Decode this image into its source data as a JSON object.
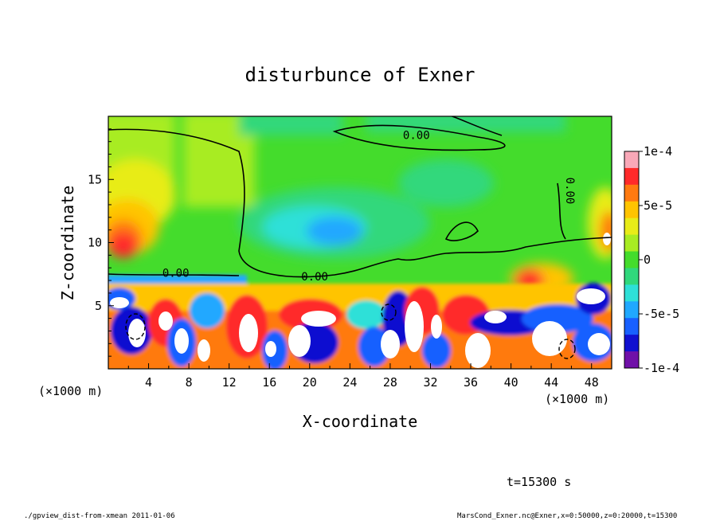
{
  "chart_data": {
    "type": "heatmap",
    "title": "disturbunce of Exner",
    "xlabel": "X-coordinate",
    "ylabel": "Z-coordinate",
    "x_unit_label": "(×1000 m)",
    "z_unit_label": "(×1000 m)",
    "xlim": [
      0,
      50
    ],
    "ylim": [
      0,
      20
    ],
    "x_ticks": [
      "4",
      "8",
      "12",
      "16",
      "20",
      "24",
      "28",
      "32",
      "36",
      "40",
      "44",
      "48"
    ],
    "y_ticks": [
      "5",
      "10",
      "15"
    ],
    "colorbar": {
      "range": [
        -0.0001,
        0.0001
      ],
      "tick_labels": [
        "1e-4",
        "5e-5",
        "0",
        "-5e-5",
        "-1e-4"
      ],
      "colors": [
        "#f9a8b8",
        "#ff2a2a",
        "#ff7a10",
        "#ffc400",
        "#e8ec18",
        "#a8ec22",
        "#44dc2c",
        "#30d87c",
        "#2ee0d8",
        "#20a8ff",
        "#1860ff",
        "#1010d0",
        "#7010a8"
      ]
    },
    "contour_labels": [
      "0.00",
      "0.00",
      "0.00",
      "0.00"
    ],
    "time_label": "t=15300 s",
    "footer_left": "./gpview_dist-from-xmean  2011-01-06",
    "footer_right": "MarsCond_Exner.nc@Exner,x=0:50000,z=0:20000,t=15300"
  }
}
